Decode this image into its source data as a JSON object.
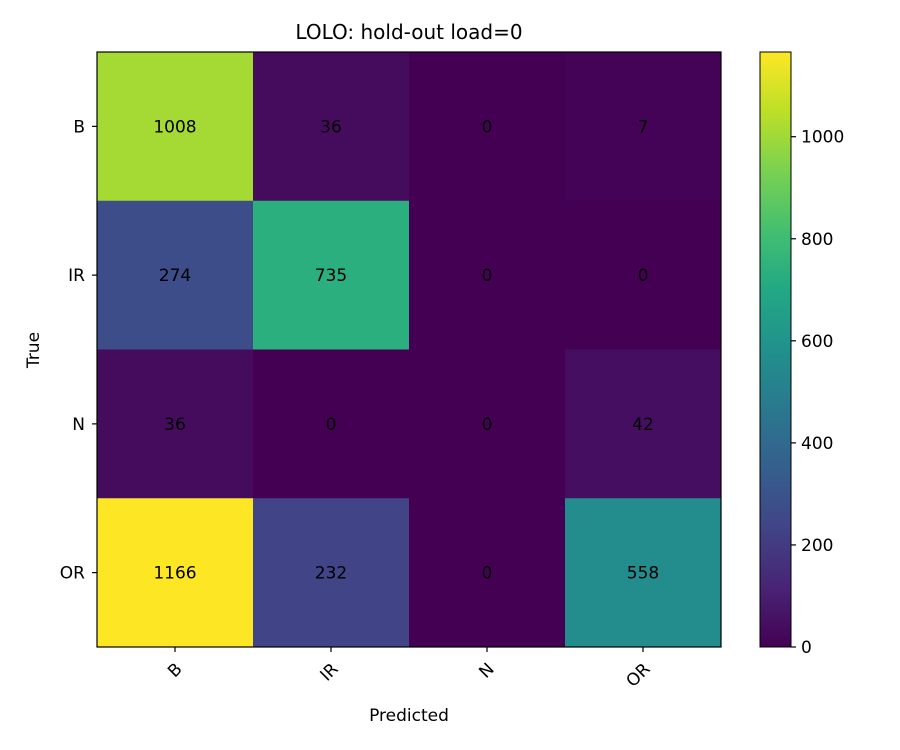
{
  "chart_data": {
    "type": "heatmap",
    "title": "LOLO: hold-out load=0",
    "xlabel": "Predicted",
    "ylabel": "True",
    "x_categories": [
      "B",
      "IR",
      "N",
      "OR"
    ],
    "y_categories": [
      "B",
      "IR",
      "N",
      "OR"
    ],
    "values": [
      [
        1008,
        36,
        0,
        7
      ],
      [
        274,
        735,
        0,
        0
      ],
      [
        36,
        0,
        0,
        42
      ],
      [
        1166,
        232,
        0,
        558
      ]
    ],
    "colorbar": {
      "min": 0,
      "max": 1166,
      "colormap": "viridis",
      "ticks": [
        0,
        200,
        400,
        600,
        800,
        1000
      ]
    },
    "grid": false
  }
}
